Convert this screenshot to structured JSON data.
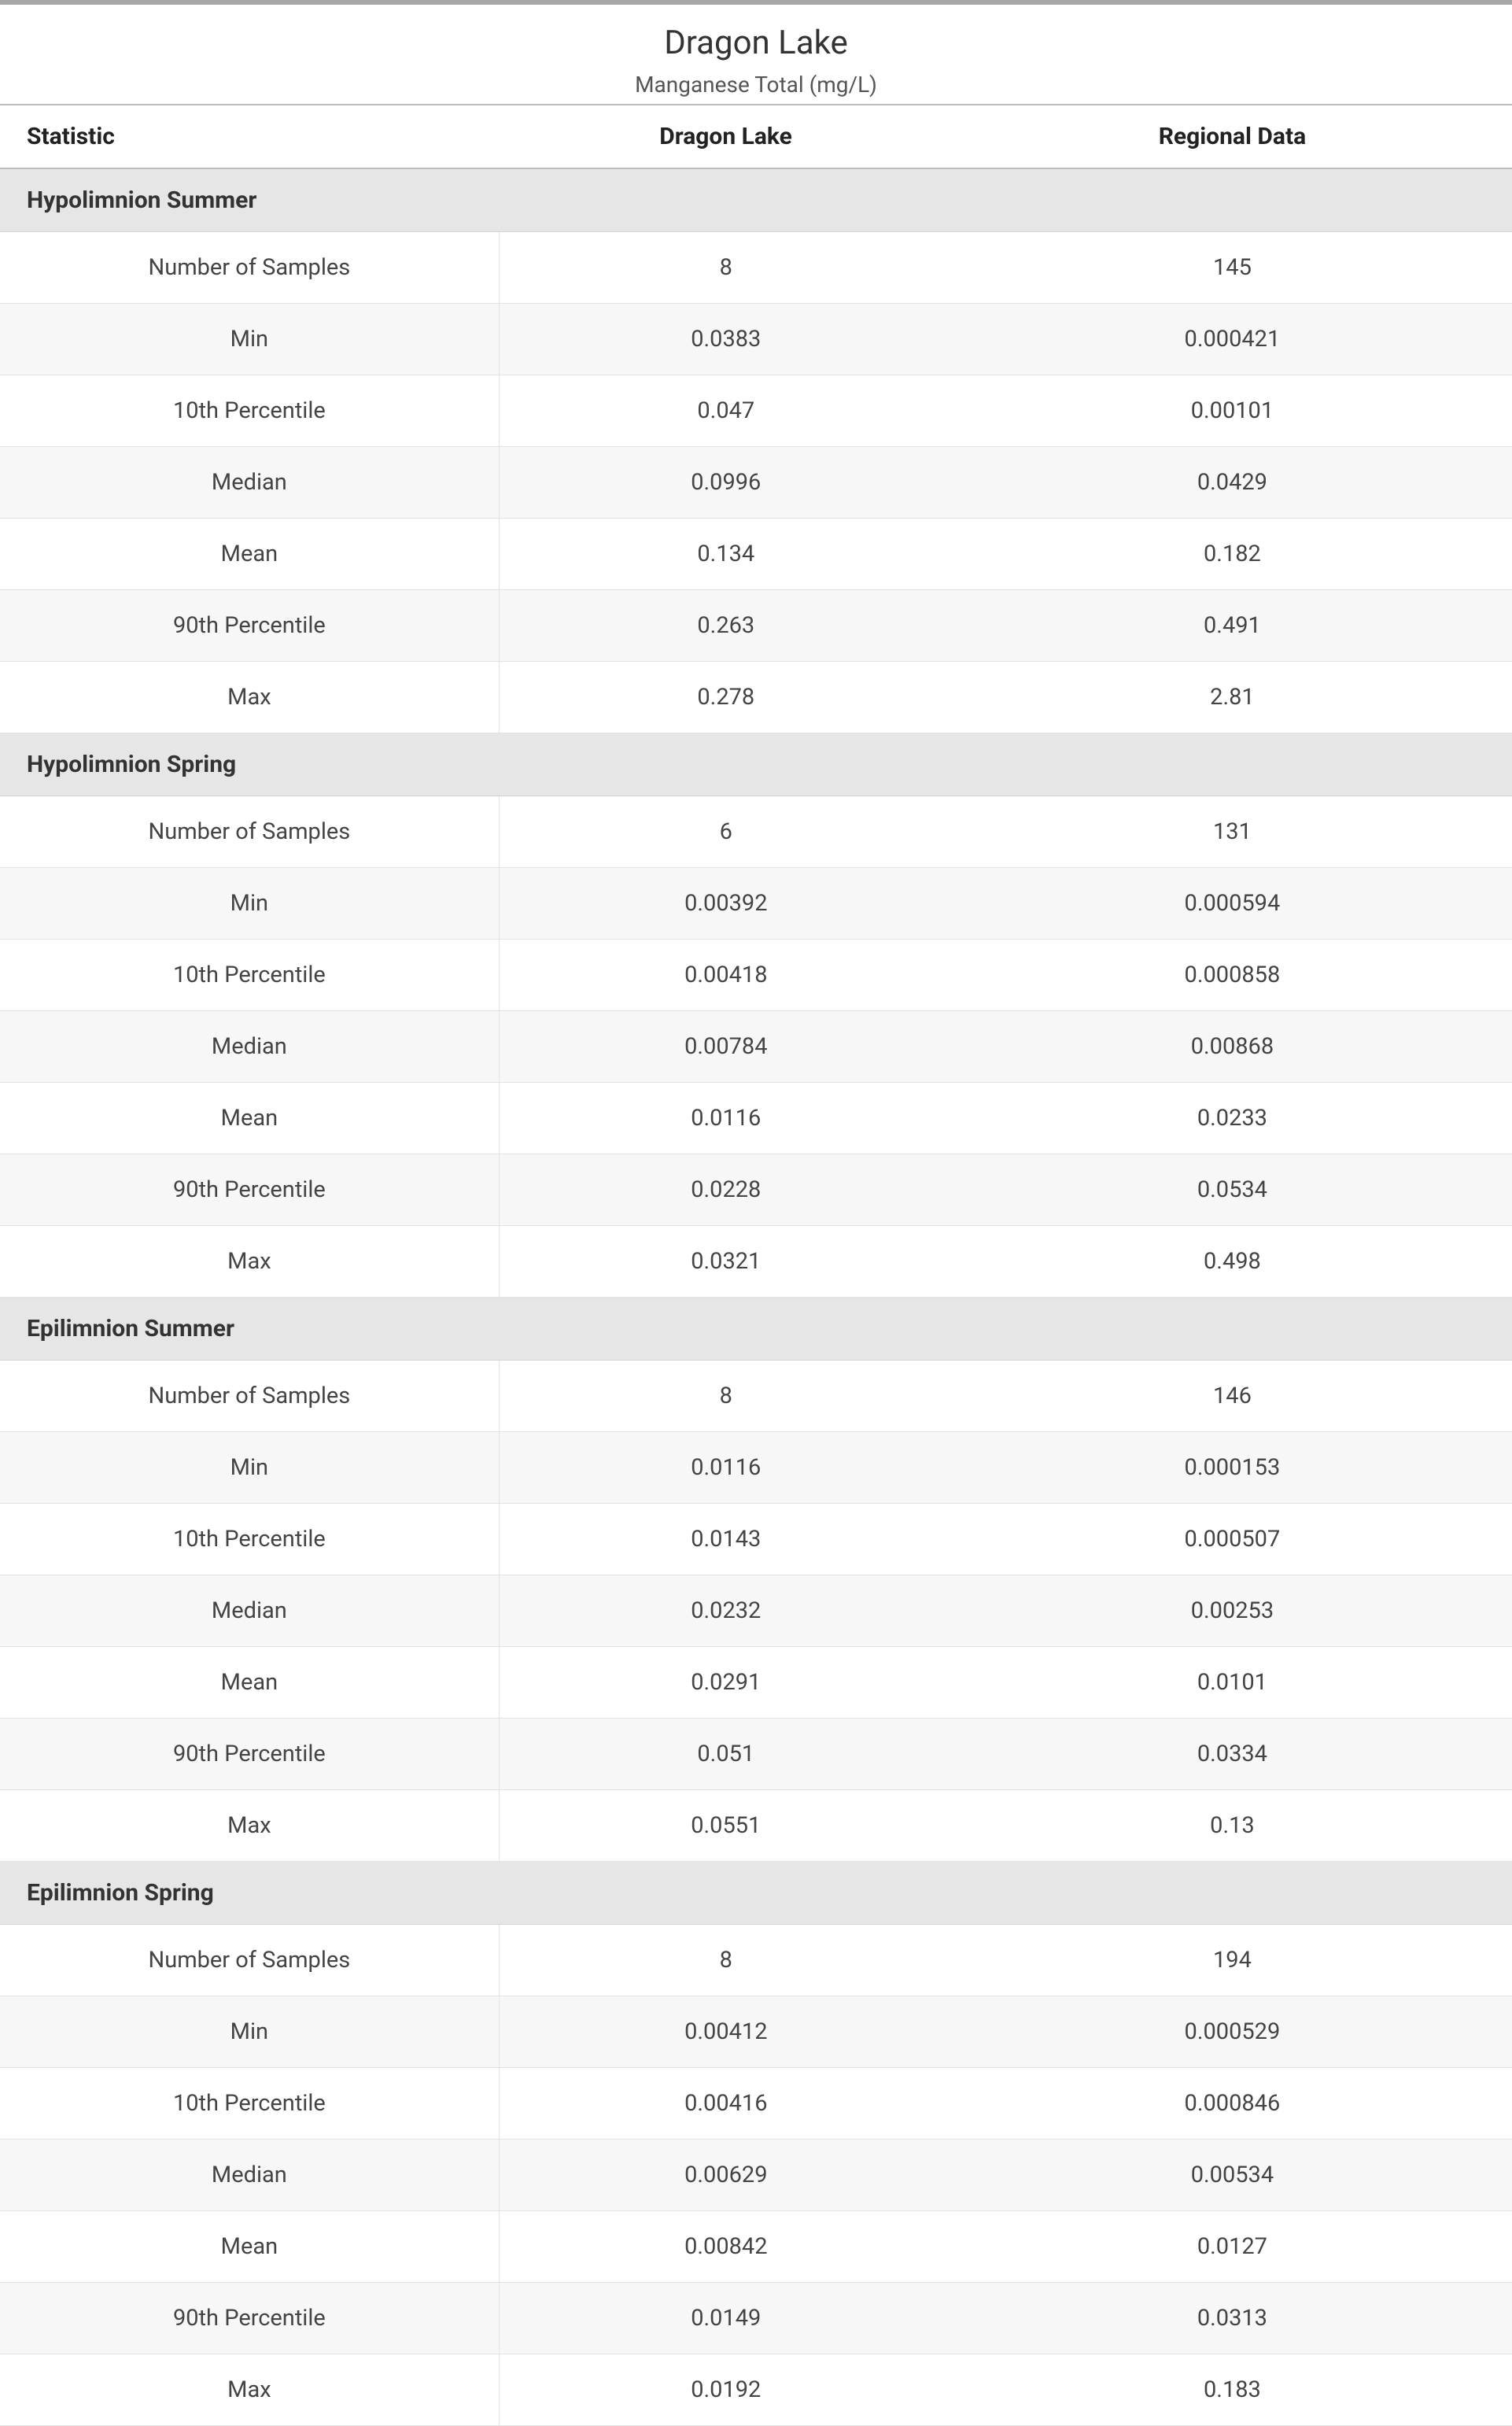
{
  "header": {
    "title": "Dragon Lake",
    "subtitle": "Manganese Total (mg/L)"
  },
  "columns": {
    "statistic": "Statistic",
    "site": "Dragon Lake",
    "regional": "Regional Data"
  },
  "style": {
    "type": "table",
    "background_color": "#ffffff",
    "section_row_bg": "#e6e6e6",
    "alt_row_bg": "#f7f7f7",
    "border_color": "#e3e3e3",
    "header_border_color": "#bdbdbd",
    "topbar_color": "#a7a7a7",
    "text_color": "#333333",
    "title_fontsize_pt": 32,
    "subtitle_fontsize_pt": 21,
    "header_fontsize_pt": 22,
    "cell_fontsize_pt": 22,
    "col_widths_pct": [
      33,
      30,
      37
    ]
  },
  "sections": [
    {
      "name": "Hypolimnion Summer",
      "rows": [
        {
          "stat": "Number of Samples",
          "site": "8",
          "regional": "145"
        },
        {
          "stat": "Min",
          "site": "0.0383",
          "regional": "0.000421"
        },
        {
          "stat": "10th Percentile",
          "site": "0.047",
          "regional": "0.00101"
        },
        {
          "stat": "Median",
          "site": "0.0996",
          "regional": "0.0429"
        },
        {
          "stat": "Mean",
          "site": "0.134",
          "regional": "0.182"
        },
        {
          "stat": "90th Percentile",
          "site": "0.263",
          "regional": "0.491"
        },
        {
          "stat": "Max",
          "site": "0.278",
          "regional": "2.81"
        }
      ]
    },
    {
      "name": "Hypolimnion Spring",
      "rows": [
        {
          "stat": "Number of Samples",
          "site": "6",
          "regional": "131"
        },
        {
          "stat": "Min",
          "site": "0.00392",
          "regional": "0.000594"
        },
        {
          "stat": "10th Percentile",
          "site": "0.00418",
          "regional": "0.000858"
        },
        {
          "stat": "Median",
          "site": "0.00784",
          "regional": "0.00868"
        },
        {
          "stat": "Mean",
          "site": "0.0116",
          "regional": "0.0233"
        },
        {
          "stat": "90th Percentile",
          "site": "0.0228",
          "regional": "0.0534"
        },
        {
          "stat": "Max",
          "site": "0.0321",
          "regional": "0.498"
        }
      ]
    },
    {
      "name": "Epilimnion Summer",
      "rows": [
        {
          "stat": "Number of Samples",
          "site": "8",
          "regional": "146"
        },
        {
          "stat": "Min",
          "site": "0.0116",
          "regional": "0.000153"
        },
        {
          "stat": "10th Percentile",
          "site": "0.0143",
          "regional": "0.000507"
        },
        {
          "stat": "Median",
          "site": "0.0232",
          "regional": "0.00253"
        },
        {
          "stat": "Mean",
          "site": "0.0291",
          "regional": "0.0101"
        },
        {
          "stat": "90th Percentile",
          "site": "0.051",
          "regional": "0.0334"
        },
        {
          "stat": "Max",
          "site": "0.0551",
          "regional": "0.13"
        }
      ]
    },
    {
      "name": "Epilimnion Spring",
      "rows": [
        {
          "stat": "Number of Samples",
          "site": "8",
          "regional": "194"
        },
        {
          "stat": "Min",
          "site": "0.00412",
          "regional": "0.000529"
        },
        {
          "stat": "10th Percentile",
          "site": "0.00416",
          "regional": "0.000846"
        },
        {
          "stat": "Median",
          "site": "0.00629",
          "regional": "0.00534"
        },
        {
          "stat": "Mean",
          "site": "0.00842",
          "regional": "0.0127"
        },
        {
          "stat": "90th Percentile",
          "site": "0.0149",
          "regional": "0.0313"
        },
        {
          "stat": "Max",
          "site": "0.0192",
          "regional": "0.183"
        }
      ]
    }
  ]
}
